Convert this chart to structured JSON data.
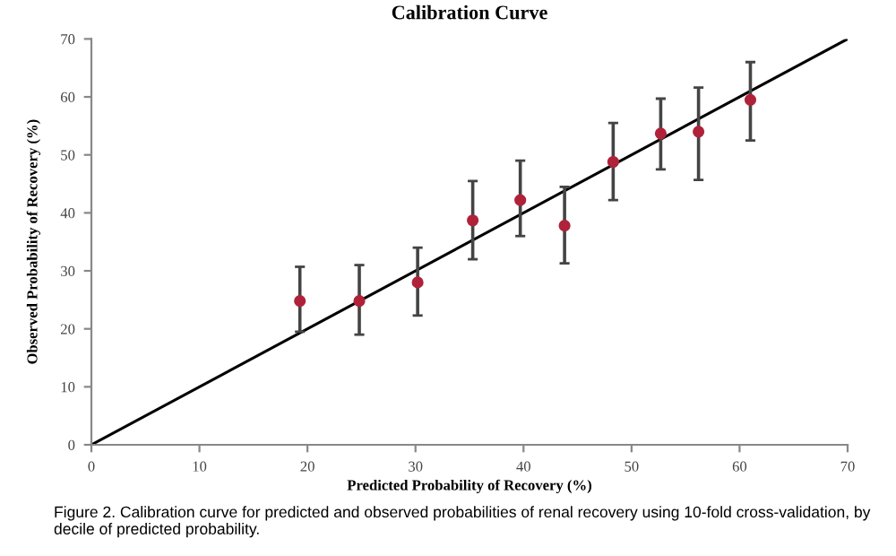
{
  "chart_data": {
    "type": "scatter",
    "title": "Calibration Curve",
    "xlabel": "Predicted Probability of Recovery (%)",
    "ylabel": "Observed Probability of Recovery (%)",
    "xlim": [
      0,
      70
    ],
    "ylim": [
      0,
      70
    ],
    "xticks": [
      0,
      10,
      20,
      30,
      40,
      50,
      60,
      70
    ],
    "yticks": [
      0,
      10,
      20,
      30,
      40,
      50,
      60,
      70
    ],
    "grid": false,
    "series": [
      {
        "marker": "circle",
        "color": "#b0223a",
        "x": [
          19.3,
          24.8,
          30.2,
          35.3,
          39.7,
          43.8,
          48.3,
          52.7,
          56.2,
          61.0
        ],
        "values": [
          24.8,
          24.8,
          28.0,
          38.7,
          42.2,
          37.8,
          48.8,
          53.7,
          54.0,
          59.5
        ],
        "errors": [
          [
            19.5,
            30.7
          ],
          [
            19.0,
            31.0
          ],
          [
            22.3,
            34.0
          ],
          [
            32.0,
            45.5
          ],
          [
            36.0,
            49.0
          ],
          [
            31.3,
            44.5
          ],
          [
            42.2,
            55.5
          ],
          [
            47.5,
            59.7
          ],
          [
            45.7,
            61.6
          ],
          [
            52.5,
            66.0
          ]
        ]
      },
      {
        "type": "line",
        "color": "#000000",
        "x": [
          0,
          70
        ],
        "values": [
          0,
          70
        ],
        "line_style": "solid",
        "marker": "none"
      }
    ],
    "annotations": [
      "Figure 2. Calibration curve for predicted and observed probabilities of renal recovery using 10-fold cross-validation, by decile of predicted probability."
    ]
  }
}
